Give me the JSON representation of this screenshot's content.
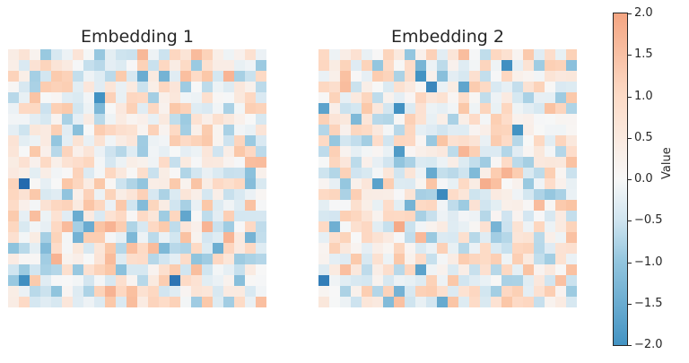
{
  "chart_data": [
    {
      "type": "heatmap",
      "title": "Embedding 1",
      "rows": 24,
      "cols": 24,
      "colormap": "diverging blue-white-orange",
      "vmin": -2.0,
      "vmax": 2.0,
      "seed": 17,
      "grid": false,
      "axes": "off"
    },
    {
      "type": "heatmap",
      "title": "Embedding 2",
      "rows": 24,
      "cols": 24,
      "colormap": "diverging blue-white-orange",
      "vmin": -2.0,
      "vmax": 2.0,
      "seed": 91,
      "grid": false,
      "axes": "off"
    }
  ],
  "colorbar": {
    "label": "Value",
    "min": -2.0,
    "max": 2.0,
    "ticks": [
      "2.0",
      "1.5",
      "1.0",
      "0.5",
      "0.0",
      "−0.5",
      "−1.0",
      "−1.5",
      "−2.0"
    ],
    "tick_values": [
      2.0,
      1.5,
      1.0,
      0.5,
      0.0,
      -0.5,
      -1.0,
      -1.5,
      -2.0
    ],
    "colors": {
      "high": "#f4a582",
      "mid": "#f7f7f7",
      "low": "#2166ac"
    }
  }
}
